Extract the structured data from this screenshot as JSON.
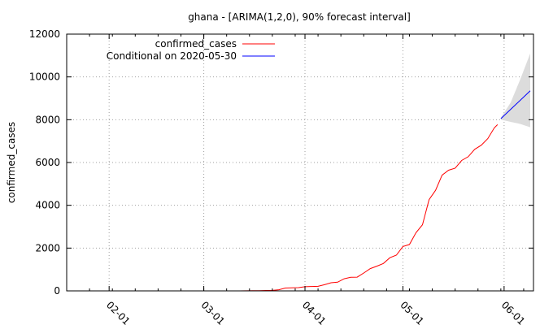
{
  "chart_data": {
    "type": "line",
    "title": "ghana -  [ARIMA(1,2,0), 90% forecast interval]",
    "xlabel": "",
    "ylabel": "confirmed_cases",
    "ylim": [
      0,
      12000
    ],
    "xlim": [
      "2020-01-19",
      "2020-06-10"
    ],
    "yticks": [
      0,
      2000,
      4000,
      6000,
      8000,
      10000,
      12000
    ],
    "xticks": [
      {
        "date": "2020-02-01",
        "label": "02-01"
      },
      {
        "date": "2020-03-01",
        "label": "03-01"
      },
      {
        "date": "2020-04-01",
        "label": "04-01"
      },
      {
        "date": "2020-05-01",
        "label": "05-01"
      },
      {
        "date": "2020-06-01",
        "label": "06-01"
      }
    ],
    "grid": true,
    "legend_position": "top-left",
    "series": [
      {
        "name": "confirmed_cases",
        "color": "#ff0000",
        "points": [
          [
            "2020-03-12",
            0
          ],
          [
            "2020-03-14",
            2
          ],
          [
            "2020-03-16",
            6
          ],
          [
            "2020-03-18",
            11
          ],
          [
            "2020-03-20",
            19
          ],
          [
            "2020-03-22",
            24
          ],
          [
            "2020-03-24",
            53
          ],
          [
            "2020-03-26",
            132
          ],
          [
            "2020-03-28",
            141
          ],
          [
            "2020-03-30",
            152
          ],
          [
            "2020-04-01",
            195
          ],
          [
            "2020-04-03",
            204
          ],
          [
            "2020-04-05",
            214
          ],
          [
            "2020-04-07",
            287
          ],
          [
            "2020-04-09",
            378
          ],
          [
            "2020-04-11",
            408
          ],
          [
            "2020-04-13",
            566
          ],
          [
            "2020-04-15",
            636
          ],
          [
            "2020-04-17",
            641
          ],
          [
            "2020-04-19",
            834
          ],
          [
            "2020-04-21",
            1042
          ],
          [
            "2020-04-23",
            1154
          ],
          [
            "2020-04-25",
            1279
          ],
          [
            "2020-04-27",
            1550
          ],
          [
            "2020-04-29",
            1671
          ],
          [
            "2020-05-01",
            2074
          ],
          [
            "2020-05-03",
            2169
          ],
          [
            "2020-05-05",
            2719
          ],
          [
            "2020-05-07",
            3091
          ],
          [
            "2020-05-09",
            4263
          ],
          [
            "2020-05-11",
            4700
          ],
          [
            "2020-05-13",
            5408
          ],
          [
            "2020-05-15",
            5638
          ],
          [
            "2020-05-17",
            5735
          ],
          [
            "2020-05-19",
            6096
          ],
          [
            "2020-05-21",
            6269
          ],
          [
            "2020-05-23",
            6617
          ],
          [
            "2020-05-25",
            6808
          ],
          [
            "2020-05-27",
            7117
          ],
          [
            "2020-05-29",
            7616
          ],
          [
            "2020-05-30",
            7768
          ]
        ]
      },
      {
        "name": "Conditional on 2020-05-30",
        "color": "#0000ff",
        "points": [
          [
            "2020-05-31",
            8050
          ],
          [
            "2020-06-09",
            9350
          ]
        ]
      }
    ],
    "forecast_interval": {
      "color": "#dcdcdc",
      "upper": [
        [
          "2020-05-31",
          8100
        ],
        [
          "2020-06-03",
          8800
        ],
        [
          "2020-06-06",
          9900
        ],
        [
          "2020-06-09",
          11100
        ]
      ],
      "lower": [
        [
          "2020-05-31",
          8000
        ],
        [
          "2020-06-03",
          7900
        ],
        [
          "2020-06-06",
          7800
        ],
        [
          "2020-06-09",
          7650
        ]
      ]
    }
  }
}
